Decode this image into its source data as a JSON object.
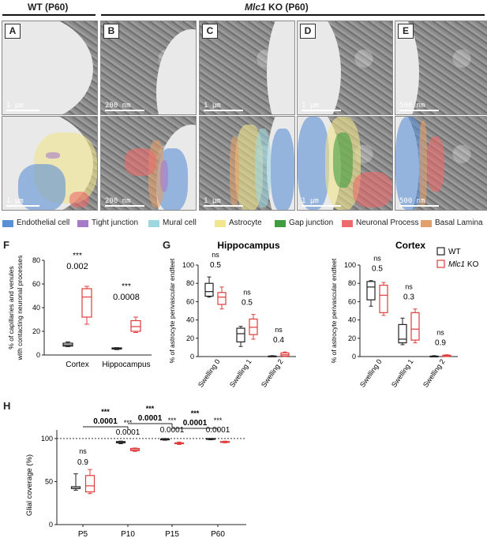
{
  "headers": {
    "wt": "WT (P60)",
    "ko_gene": "Mlc1",
    "ko_rest": " KO (P60)"
  },
  "em_panels": [
    {
      "id": "A",
      "scale": "1 µm"
    },
    {
      "id": "B",
      "scale": "200 nm"
    },
    {
      "id": "C",
      "scale": "1 µm"
    },
    {
      "id": "D",
      "scale": "1 µm"
    },
    {
      "id": "E",
      "scale": "500 nm"
    },
    {
      "id": "",
      "scale": "1 µm"
    },
    {
      "id": "",
      "scale": "200 nm"
    },
    {
      "id": "",
      "scale": "1 µm"
    },
    {
      "id": "",
      "scale": "1 µm"
    },
    {
      "id": "",
      "scale": "500 nm"
    }
  ],
  "colors": {
    "endothelial": "#5b8fd6",
    "tight_junction": "#a87bc8",
    "mural": "#9fd7e0",
    "astrocyte": "#f2e58c",
    "gap_junction": "#3f9c3f",
    "neuronal": "#ec6b6b",
    "basal_lamina": "#e3a06a",
    "wt": "#222222",
    "ko": "#e03c3c"
  },
  "legend": [
    "Endothelial cell",
    "Tight junction",
    "Mural cell",
    "Astrocyte",
    "Gap junction",
    "Neuronal Process",
    "Basal Lamina"
  ],
  "panel_labels": {
    "F": "F",
    "G": "G",
    "H": "H"
  },
  "chart_data": [
    {
      "panel": "F",
      "type": "box",
      "ylabel": "% of capillaries and venules with contacting neuronal processes",
      "ylim": [
        0,
        80
      ],
      "yticks": [
        "0",
        "20",
        "40",
        "60",
        "80"
      ],
      "categories": [
        "Cortex",
        "Hippocampus"
      ],
      "series": [
        {
          "name": "WT",
          "boxes": [
            {
              "min": 7,
              "q1": 7.5,
              "median": 8.5,
              "q3": 10,
              "max": 11
            },
            {
              "min": 4.5,
              "q1": 5,
              "median": 5.5,
              "q3": 6,
              "max": 6.2
            }
          ]
        },
        {
          "name": "Mlc1 KO",
          "boxes": [
            {
              "min": 26,
              "q1": 32,
              "median": 49,
              "q3": 56,
              "max": 58
            },
            {
              "min": 19,
              "q1": 20,
              "median": 24,
              "q3": 29,
              "max": 32
            }
          ]
        }
      ],
      "annotations": [
        {
          "sig": "***",
          "p": "0.002"
        },
        {
          "sig": "***",
          "p": "0.0008"
        }
      ]
    },
    {
      "panel": "G",
      "type": "box",
      "title": "Hippocampus",
      "ylabel": "% of astrocyte perivascular endfeet",
      "ylim": [
        0,
        100
      ],
      "yticks": [
        "0",
        "20",
        "40",
        "60",
        "80",
        "100"
      ],
      "categories": [
        "Swelling 0",
        "Swelling 1",
        "Swelling 2"
      ],
      "series": [
        {
          "name": "WT",
          "boxes": [
            {
              "min": 65,
              "q1": 66,
              "median": 71,
              "q3": 80,
              "max": 87
            },
            {
              "min": 11,
              "q1": 16,
              "median": 25,
              "q3": 31,
              "max": 33
            },
            {
              "min": 0,
              "q1": 0,
              "median": 0.3,
              "q3": 0.6,
              "max": 1
            }
          ]
        },
        {
          "name": "Mlc1 KO",
          "boxes": [
            {
              "min": 52,
              "q1": 57,
              "median": 65,
              "q3": 70,
              "max": 76
            },
            {
              "min": 19,
              "q1": 24,
              "median": 32,
              "q3": 41,
              "max": 46
            },
            {
              "min": 0,
              "q1": 0.5,
              "median": 2,
              "q3": 4,
              "max": 5
            }
          ]
        }
      ],
      "annotations": [
        {
          "sig": "ns",
          "p": "0.5"
        },
        {
          "sig": "ns",
          "p": "0.5"
        },
        {
          "sig": "ns",
          "p": "0.4"
        }
      ]
    },
    {
      "panel": "G",
      "type": "box",
      "title": "Cortex",
      "ylabel": "% of astrocyte perivascular endfeet",
      "ylim": [
        0,
        100
      ],
      "yticks": [
        "0",
        "20",
        "40",
        "60",
        "80",
        "100"
      ],
      "categories": [
        "Swelling 0",
        "Swelling 1",
        "Swelling 2"
      ],
      "series": [
        {
          "name": "WT",
          "boxes": [
            {
              "min": 55,
              "q1": 62,
              "median": 76,
              "q3": 82,
              "max": 83
            },
            {
              "min": 13,
              "q1": 15,
              "median": 19,
              "q3": 35,
              "max": 42
            },
            {
              "min": 0,
              "q1": 0,
              "median": 0.2,
              "q3": 0.5,
              "max": 1
            }
          ]
        },
        {
          "name": "Mlc1 KO",
          "boxes": [
            {
              "min": 45,
              "q1": 48,
              "median": 67,
              "q3": 78,
              "max": 81
            },
            {
              "min": 15,
              "q1": 18,
              "median": 30,
              "q3": 48,
              "max": 52
            },
            {
              "min": 0,
              "q1": 0.3,
              "median": 0.8,
              "q3": 1.5,
              "max": 2
            }
          ]
        }
      ],
      "annotations": [
        {
          "sig": "ns",
          "p": "0.5"
        },
        {
          "sig": "ns",
          "p": "0.3"
        },
        {
          "sig": "ns",
          "p": "0.9"
        }
      ],
      "legend": [
        "WT",
        "Mlc1 KO"
      ]
    },
    {
      "panel": "H",
      "type": "box",
      "ylabel": "Glial coverage (%)",
      "ylim": [
        0,
        110
      ],
      "yticks": [
        "0",
        "50",
        "100"
      ],
      "categories": [
        "P5",
        "P10",
        "P15",
        "P60"
      ],
      "reference_line": 100,
      "series": [
        {
          "name": "WT",
          "boxes": [
            {
              "min": 40,
              "q1": 42,
              "median": 42,
              "q3": 44,
              "max": 59
            },
            {
              "min": 94,
              "q1": 95,
              "median": 95.5,
              "q3": 96.5,
              "max": 97
            },
            {
              "min": 98,
              "q1": 98.5,
              "median": 99,
              "q3": 99.5,
              "max": 100
            },
            {
              "min": 98.5,
              "q1": 99,
              "median": 99.5,
              "q3": 100,
              "max": 100
            }
          ]
        },
        {
          "name": "Mlc1 KO",
          "boxes": [
            {
              "min": 36,
              "q1": 38,
              "median": 45,
              "q3": 57,
              "max": 64
            },
            {
              "min": 85,
              "q1": 86,
              "median": 87,
              "q3": 88.5,
              "max": 89
            },
            {
              "min": 93,
              "q1": 94,
              "median": 94.5,
              "q3": 95,
              "max": 96
            },
            {
              "min": 95,
              "q1": 95.5,
              "median": 96,
              "q3": 96.5,
              "max": 97
            }
          ]
        }
      ],
      "annotations": [
        {
          "sig": "ns",
          "p": "0.9"
        },
        {
          "sig": "***",
          "p": "0.0001"
        },
        {
          "sig": "***",
          "p": "0.0001"
        },
        {
          "sig": "***",
          "p": "0.0001"
        }
      ],
      "brackets": [
        {
          "from": 0,
          "to": 1,
          "sig": "***",
          "p": "0.0001"
        },
        {
          "from": 1,
          "to": 2,
          "sig": "***",
          "p": "0.0001"
        },
        {
          "from": 2,
          "to": 3,
          "sig": "***",
          "p": "0.0001"
        }
      ]
    }
  ]
}
